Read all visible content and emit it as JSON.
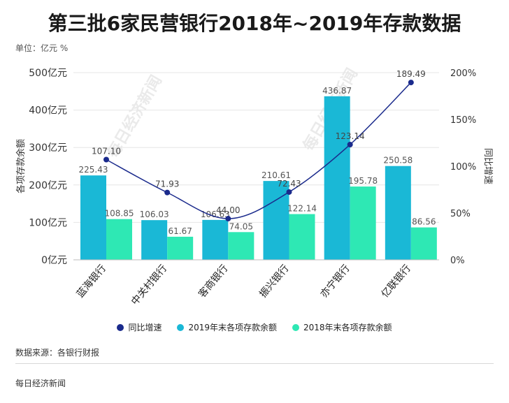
{
  "title": "第三批6家民营银行2018年~2019年存款数据",
  "unit": "单位：亿元 %",
  "source": "数据来源：各银行财报",
  "footer": "每日经济新闻",
  "watermark": "每日经济新闻",
  "colors": {
    "series2019": "#1ab8d6",
    "series2018": "#2ee8b4",
    "line": "#1a2a8c"
  },
  "chart_data": {
    "type": "bar",
    "categories": [
      "蓝海银行",
      "中关村银行",
      "客商银行",
      "振兴银行",
      "亦宁银行",
      "亿联银行"
    ],
    "series": [
      {
        "name": "2019年末各项存款余额",
        "values": [
          225.43,
          106.03,
          106.63,
          210.61,
          436.87,
          250.58
        ],
        "value_labels": [
          "225.43",
          "106.03",
          "106.63",
          "210.61",
          "436.87",
          "250.58"
        ]
      },
      {
        "name": "2018年末各项存款余额",
        "values": [
          108.85,
          61.67,
          74.05,
          122.14,
          195.78,
          86.56
        ],
        "value_labels": [
          "108.85",
          "61.67",
          "74.05",
          "122.14",
          "195.78",
          "86.56"
        ]
      }
    ],
    "line_series": {
      "name": "同比增速",
      "values": [
        107.1,
        71.93,
        44.0,
        72.43,
        123.14,
        189.49
      ],
      "value_labels": [
        "107.10",
        "71.93",
        "44.00",
        "72.43",
        "123.14",
        "189.49"
      ]
    },
    "ylabel_left": "各项存款余额",
    "ylabel_right": "同比增速",
    "ylim_left": [
      0,
      500
    ],
    "ylim_right": [
      0,
      200
    ],
    "yticks_left": [
      "0亿元",
      "100亿元",
      "200亿元",
      "300亿元",
      "400亿元",
      "500亿元"
    ],
    "yticks_right": [
      "0%",
      "50%",
      "100%",
      "150%",
      "200%"
    ],
    "legend": [
      "同比增速",
      "2019年末各项存款余额",
      "2018年末各项存款余额"
    ],
    "grid": true,
    "legend_position": "bottom"
  }
}
